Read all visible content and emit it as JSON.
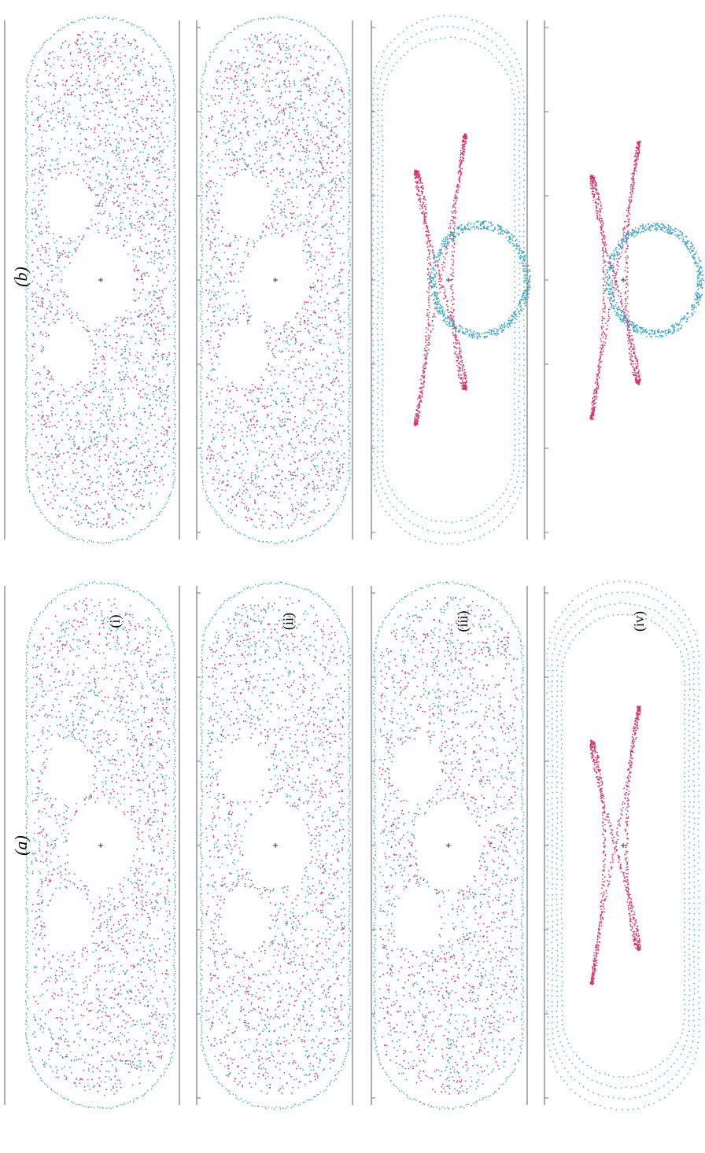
{
  "figure": {
    "panel_labels": [
      "(a)",
      "(b)"
    ],
    "row_labels": [
      "(i)",
      "(ii)",
      "(iii)",
      "(iv)"
    ],
    "colors": {
      "series_a": "#3aa6c4",
      "series_b": "#d6336c",
      "axis": "#777777",
      "centre_mark": "#333333"
    },
    "rotation": "90-degrees-counterclockwise",
    "columns": [
      {
        "panel": "(a)",
        "rows": [
          {
            "row": "(i)",
            "pattern": "mixed-scatter",
            "islands": 3
          },
          {
            "row": "(ii)",
            "pattern": "mixed-scatter",
            "islands": 3
          },
          {
            "row": "(iii)",
            "pattern": "mixed-scatter-cores",
            "islands": 3
          },
          {
            "row": "(iv)",
            "pattern": "lobed-loop-with-arcs",
            "islands": 0
          }
        ]
      },
      {
        "panel": "(b)",
        "rows": [
          {
            "row": "(i)",
            "pattern": "mixed-scatter",
            "islands": 3
          },
          {
            "row": "(ii)",
            "pattern": "mixed-scatter",
            "islands": 3
          },
          {
            "row": "(iii)",
            "pattern": "lobed-loop-and-ring",
            "islands": 3
          },
          {
            "row": "(iv)",
            "pattern": "lobed-loop-and-ring-open",
            "islands": 0
          }
        ]
      }
    ]
  }
}
